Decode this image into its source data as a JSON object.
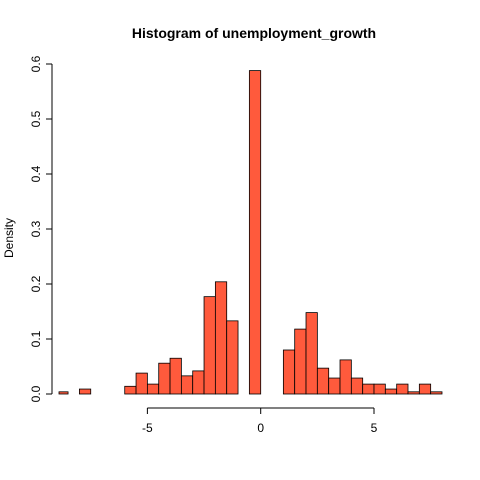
{
  "chart_data": {
    "type": "bar",
    "title": "Histogram of unemployment_growth",
    "xlabel": "",
    "ylabel": "Density",
    "bar_color": "#FF5A3C",
    "xlim": [
      -8.9,
      8.0
    ],
    "ylim": [
      0,
      0.6
    ],
    "x_ticks": [
      -5,
      0,
      5
    ],
    "x_tick_labels": [
      "-5",
      "0",
      "5"
    ],
    "y_ticks": [
      0.0,
      0.1,
      0.2,
      0.3,
      0.4,
      0.5,
      0.6
    ],
    "y_tick_labels": [
      "0.0",
      "0.1",
      "0.2",
      "0.3",
      "0.4",
      "0.5",
      "0.6"
    ],
    "bin_width": 0.5,
    "bins": [
      {
        "start": -9.0,
        "density": 0.004
      },
      {
        "start": -8.5,
        "density": 0.0
      },
      {
        "start": -8.0,
        "density": 0.009
      },
      {
        "start": -7.5,
        "density": 0.0
      },
      {
        "start": -7.0,
        "density": 0.0
      },
      {
        "start": -6.5,
        "density": 0.0
      },
      {
        "start": -6.0,
        "density": 0.014
      },
      {
        "start": -5.5,
        "density": 0.038
      },
      {
        "start": -5.0,
        "density": 0.018
      },
      {
        "start": -4.5,
        "density": 0.056
      },
      {
        "start": -4.0,
        "density": 0.065
      },
      {
        "start": -3.5,
        "density": 0.033
      },
      {
        "start": -3.0,
        "density": 0.042
      },
      {
        "start": -2.5,
        "density": 0.177
      },
      {
        "start": -2.0,
        "density": 0.204
      },
      {
        "start": -1.5,
        "density": 0.133
      },
      {
        "start": -1.0,
        "density": 0.0
      },
      {
        "start": -0.5,
        "density": 0.588
      },
      {
        "start": 0.0,
        "density": 0.0
      },
      {
        "start": 0.5,
        "density": 0.0
      },
      {
        "start": 1.0,
        "density": 0.08
      },
      {
        "start": 1.5,
        "density": 0.118
      },
      {
        "start": 2.0,
        "density": 0.148
      },
      {
        "start": 2.5,
        "density": 0.047
      },
      {
        "start": 3.0,
        "density": 0.029
      },
      {
        "start": 3.5,
        "density": 0.062
      },
      {
        "start": 4.0,
        "density": 0.029
      },
      {
        "start": 4.5,
        "density": 0.018
      },
      {
        "start": 5.0,
        "density": 0.018
      },
      {
        "start": 5.5,
        "density": 0.009
      },
      {
        "start": 6.0,
        "density": 0.018
      },
      {
        "start": 6.5,
        "density": 0.004
      },
      {
        "start": 7.0,
        "density": 0.018
      },
      {
        "start": 7.5,
        "density": 0.004
      }
    ]
  }
}
